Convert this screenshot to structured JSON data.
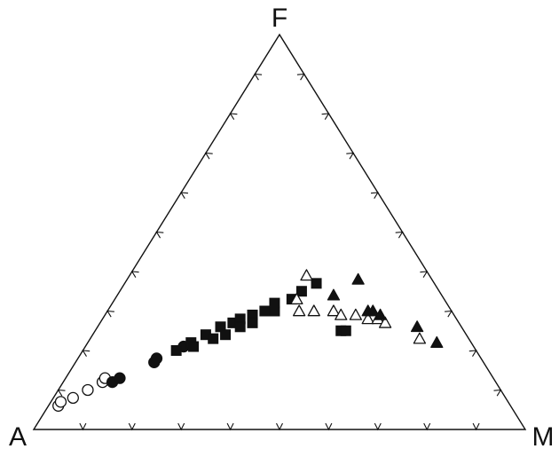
{
  "chart_data": {
    "type": "scatter",
    "diagram": "ternary",
    "title": "",
    "vertex_labels": {
      "left": "A",
      "top": "F",
      "right": "M"
    },
    "ink": "#111111",
    "tick_fractions": [
      0.1,
      0.2,
      0.3,
      0.4,
      0.5,
      0.6,
      0.7,
      0.8,
      0.9
    ],
    "series": [
      {
        "marker": "open-circle",
        "points": [
          {
            "F": 0.06,
            "M": 0.02
          },
          {
            "F": 0.07,
            "M": 0.02
          },
          {
            "F": 0.08,
            "M": 0.04
          },
          {
            "F": 0.1,
            "M": 0.06
          },
          {
            "F": 0.12,
            "M": 0.08
          },
          {
            "F": 0.13,
            "M": 0.08
          }
        ]
      },
      {
        "marker": "filled-circle",
        "points": [
          {
            "F": 0.12,
            "M": 0.1
          },
          {
            "F": 0.13,
            "M": 0.11
          },
          {
            "F": 0.17,
            "M": 0.16
          },
          {
            "F": 0.18,
            "M": 0.16
          },
          {
            "F": 0.21,
            "M": 0.2
          }
        ]
      },
      {
        "marker": "filled-square",
        "points": [
          {
            "F": 0.2,
            "M": 0.19
          },
          {
            "F": 0.22,
            "M": 0.21
          },
          {
            "F": 0.21,
            "M": 0.22
          },
          {
            "F": 0.24,
            "M": 0.23
          },
          {
            "F": 0.23,
            "M": 0.25
          },
          {
            "F": 0.26,
            "M": 0.25
          },
          {
            "F": 0.27,
            "M": 0.27
          },
          {
            "F": 0.24,
            "M": 0.27
          },
          {
            "F": 0.28,
            "M": 0.28
          },
          {
            "F": 0.26,
            "M": 0.29
          },
          {
            "F": 0.29,
            "M": 0.3
          },
          {
            "F": 0.27,
            "M": 0.31
          },
          {
            "F": 0.3,
            "M": 0.32
          },
          {
            "F": 0.32,
            "M": 0.33
          },
          {
            "F": 0.3,
            "M": 0.34
          },
          {
            "F": 0.33,
            "M": 0.36
          },
          {
            "F": 0.35,
            "M": 0.37
          },
          {
            "F": 0.37,
            "M": 0.39
          },
          {
            "F": 0.25,
            "M": 0.5
          },
          {
            "F": 0.25,
            "M": 0.51
          }
        ]
      },
      {
        "marker": "open-triangle",
        "points": [
          {
            "F": 0.39,
            "M": 0.36
          },
          {
            "F": 0.33,
            "M": 0.37
          },
          {
            "F": 0.3,
            "M": 0.39
          },
          {
            "F": 0.3,
            "M": 0.42
          },
          {
            "F": 0.3,
            "M": 0.46
          },
          {
            "F": 0.29,
            "M": 0.48
          },
          {
            "F": 0.29,
            "M": 0.51
          },
          {
            "F": 0.28,
            "M": 0.54
          },
          {
            "F": 0.28,
            "M": 0.56
          },
          {
            "F": 0.27,
            "M": 0.58
          },
          {
            "F": 0.23,
            "M": 0.67
          }
        ]
      },
      {
        "marker": "filled-triangle",
        "points": [
          {
            "F": 0.34,
            "M": 0.44
          },
          {
            "F": 0.38,
            "M": 0.47
          },
          {
            "F": 0.3,
            "M": 0.53
          },
          {
            "F": 0.3,
            "M": 0.54
          },
          {
            "F": 0.29,
            "M": 0.56
          },
          {
            "F": 0.26,
            "M": 0.65
          },
          {
            "F": 0.22,
            "M": 0.71
          }
        ]
      }
    ]
  }
}
